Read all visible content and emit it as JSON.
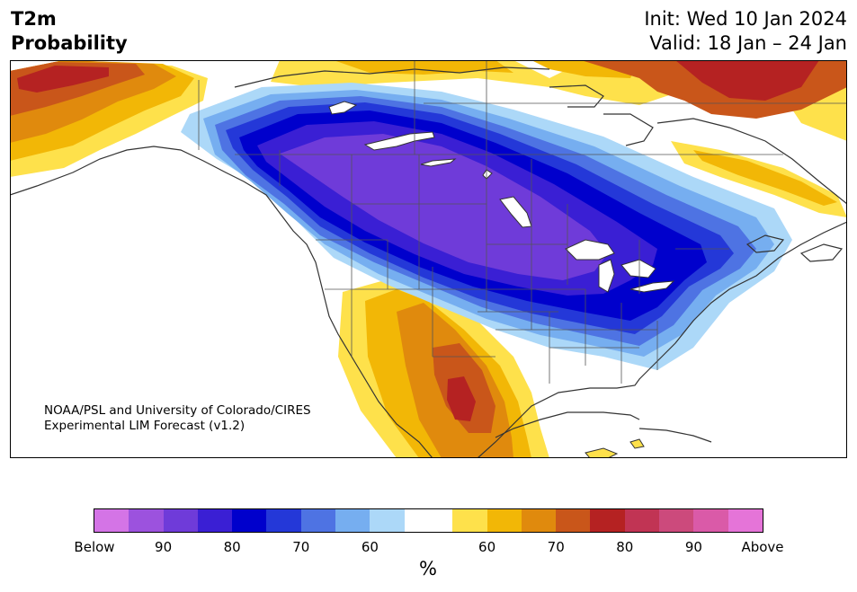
{
  "header": {
    "title_line1": "T2m",
    "title_line2": "Probability",
    "init": "Init: Wed 10 Jan 2024",
    "valid": "Valid: 18 Jan – 24 Jan"
  },
  "credit": {
    "line1": "NOAA/PSL and University of Colorado/CIRES",
    "line2": "Experimental LIM Forecast (v1.2)"
  },
  "colorbar": {
    "colors": [
      "#d474e6",
      "#9c52de",
      "#6f3bd9",
      "#3a1fd4",
      "#0000cc",
      "#2438d8",
      "#4e73e3",
      "#76aef0",
      "#acd8f8",
      "#ffffff",
      "#fee14b",
      "#f2b706",
      "#e08a0d",
      "#c9561a",
      "#b52222",
      "#c13454",
      "#cc4a7c",
      "#da5aa8",
      "#e574d8"
    ],
    "tick_labels": [
      "Below",
      "90",
      "80",
      "70",
      "60",
      "60",
      "70",
      "80",
      "90",
      "Above"
    ],
    "unit": "%"
  }
}
